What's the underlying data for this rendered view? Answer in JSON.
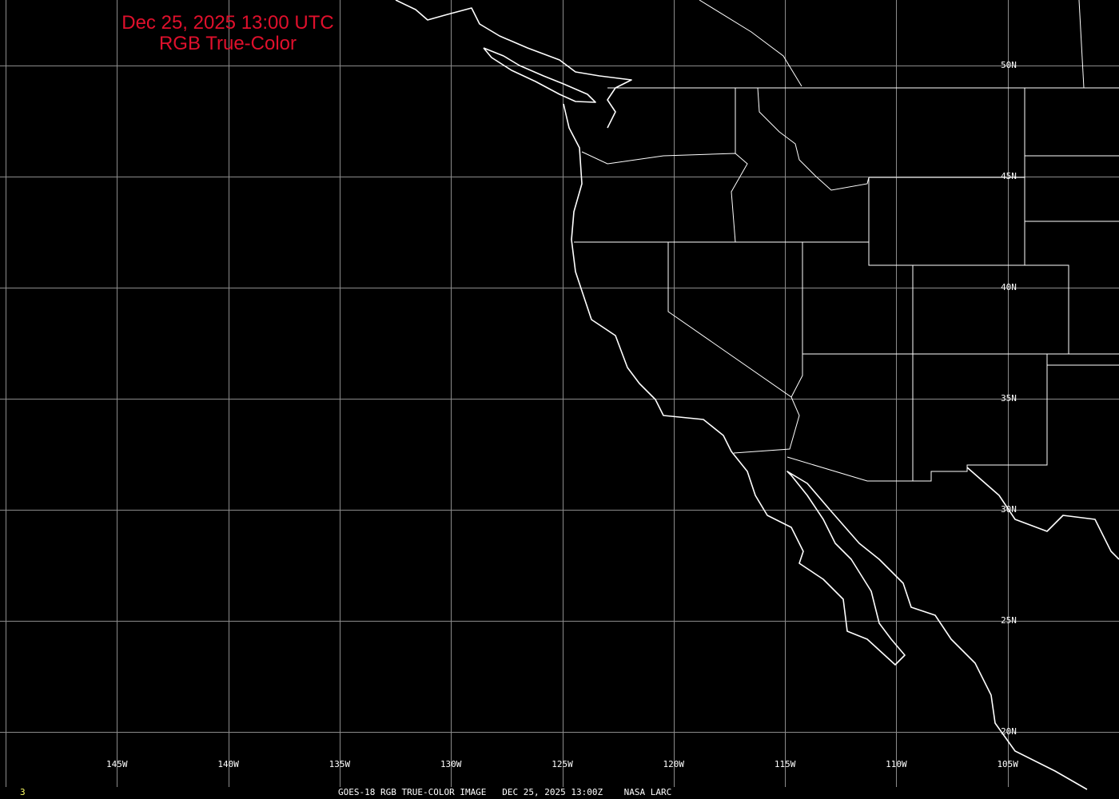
{
  "header": {
    "title_line1": "Dec 25, 2025 13:00 UTC",
    "title_line2": "RGB True-Color",
    "title_color": "#e0102c"
  },
  "grid": {
    "longitude_labels": [
      "145W",
      "140W",
      "135W",
      "130W",
      "125W",
      "120W",
      "115W",
      "110W",
      "105W"
    ],
    "latitude_labels": [
      "50N",
      "45N",
      "40N",
      "35N",
      "30N",
      "25N",
      "20N"
    ]
  },
  "footer": {
    "frame_number": "3",
    "caption": "GOES-18 RGB TRUE-COLOR IMAGE   DEC 25, 2025 13:00Z    NASA LARC"
  },
  "colors": {
    "background": "#000000",
    "coastline": "#ffffff",
    "grid": "#8c8c8c",
    "frame_number": "#ffff66"
  }
}
